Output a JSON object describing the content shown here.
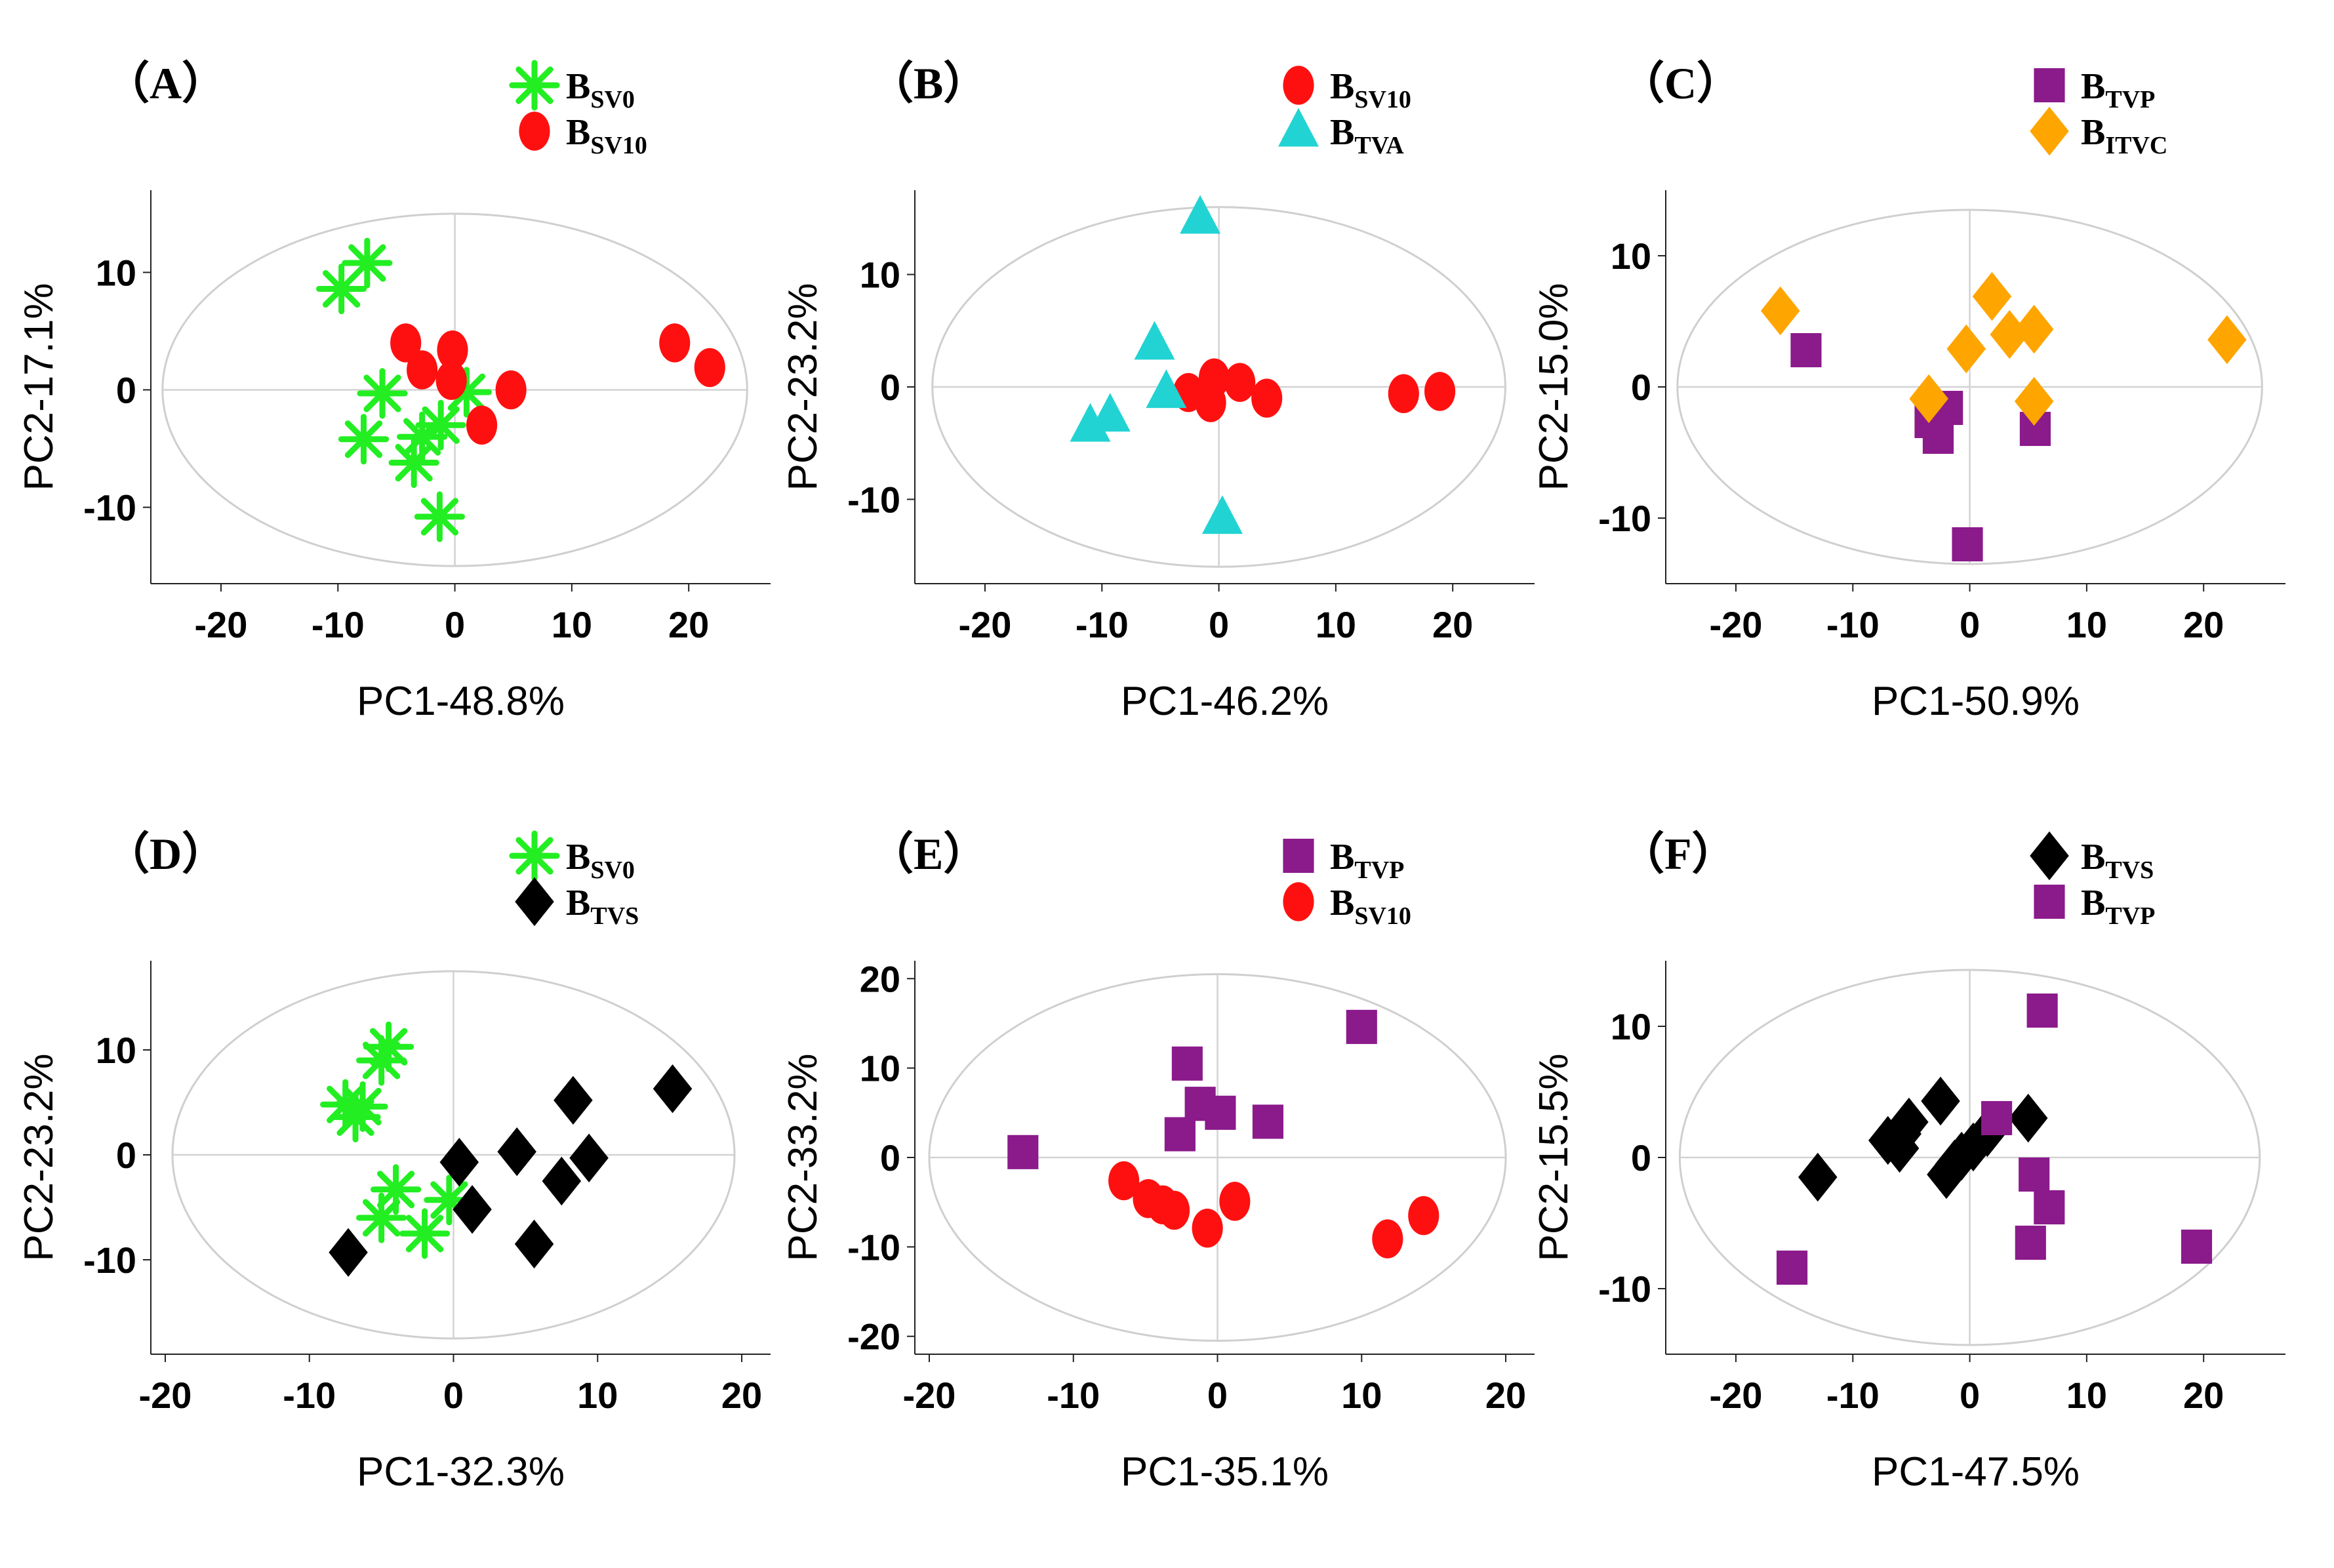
{
  "colors": {
    "green": "#22ee22",
    "red": "#ff1010",
    "cyan": "#22d3d3",
    "purple": "#8b1a8b",
    "orange": "#ffa500",
    "black": "#000000"
  },
  "chart_data": [
    {
      "type": "scatter",
      "panel_label": "（A）",
      "xlabel": "PC1-48.8%",
      "ylabel": "PC2-17.1%",
      "xlim": [
        -26,
        27
      ],
      "ylim": [
        -16.5,
        17
      ],
      "xticks": [
        -20,
        -10,
        0,
        10,
        20
      ],
      "xtick_labels": [
        "-20",
        "-10",
        "0",
        "10",
        "20"
      ],
      "yticks": [
        -10,
        0,
        10
      ],
      "ytick_labels": [
        "-10",
        "0",
        "10"
      ],
      "ellipse": {
        "rx": 25,
        "ry": 15
      },
      "series": [
        {
          "name": "BSV0",
          "label_main": "B",
          "label_sub": "SV0",
          "marker": "asterisk",
          "color": "#22ee22",
          "points": [
            [
              -9.7,
              8.6
            ],
            [
              -7.5,
              10.8
            ],
            [
              -6.2,
              -0.3
            ],
            [
              -7.8,
              -4.2
            ],
            [
              -3.5,
              -6.2
            ],
            [
              -2.8,
              -4.0
            ],
            [
              -1.2,
              -3.0
            ],
            [
              -1.3,
              -10.8
            ],
            [
              1.0,
              -0.2
            ]
          ]
        },
        {
          "name": "BSV10",
          "label_main": "B",
          "label_sub": "SV10",
          "marker": "oval",
          "color": "#ff1010",
          "points": [
            [
              -4.2,
              4.0
            ],
            [
              -2.8,
              1.7
            ],
            [
              -0.2,
              3.4
            ],
            [
              -0.3,
              0.8
            ],
            [
              4.8,
              0.0
            ],
            [
              2.3,
              -3.0
            ],
            [
              18.8,
              4.0
            ],
            [
              21.8,
              1.9
            ]
          ]
        }
      ]
    },
    {
      "type": "scatter",
      "panel_label": "（B）",
      "xlabel": "PC1-46.2%",
      "ylabel": "PC2-23.2%",
      "xlim": [
        -26,
        27
      ],
      "ylim": [
        -17.5,
        17.5
      ],
      "xticks": [
        -20,
        -10,
        0,
        10,
        20
      ],
      "xtick_labels": [
        "-20",
        "-10",
        "0",
        "10",
        "20"
      ],
      "yticks": [
        -10,
        0,
        10
      ],
      "ytick_labels": [
        "-10",
        "0",
        "10"
      ],
      "ellipse": {
        "rx": 24.5,
        "ry": 16
      },
      "series": [
        {
          "name": "BSV10",
          "label_main": "B",
          "label_sub": "SV10",
          "marker": "oval",
          "color": "#ff1010",
          "points": [
            [
              -2.6,
              -0.5
            ],
            [
              -0.4,
              0.8
            ],
            [
              -0.7,
              -1.4
            ],
            [
              1.8,
              0.4
            ],
            [
              4.1,
              -1.0
            ],
            [
              15.8,
              -0.6
            ],
            [
              18.9,
              -0.4
            ]
          ]
        },
        {
          "name": "BTVA",
          "label_main": "B",
          "label_sub": "TVA",
          "marker": "triangle",
          "color": "#22d3d3",
          "points": [
            [
              -1.6,
              15.0
            ],
            [
              -5.5,
              3.8
            ],
            [
              -4.5,
              -0.5
            ],
            [
              -9.3,
              -2.6
            ],
            [
              -11.0,
              -3.5
            ],
            [
              0.3,
              -11.7
            ]
          ]
        }
      ]
    },
    {
      "type": "scatter",
      "panel_label": "（C）",
      "xlabel": "PC1-50.9%",
      "ylabel": "PC2-15.0%",
      "xlim": [
        -26,
        27
      ],
      "ylim": [
        -15,
        15
      ],
      "xticks": [
        -20,
        -10,
        0,
        10,
        20
      ],
      "xtick_labels": [
        "-20",
        "-10",
        "0",
        "10",
        "20"
      ],
      "yticks": [
        -10,
        0,
        10
      ],
      "ytick_labels": [
        "-10",
        "0",
        "10"
      ],
      "ellipse": {
        "rx": 25,
        "ry": 13.5
      },
      "series": [
        {
          "name": "BTVP",
          "label_main": "B",
          "label_sub": "TVP",
          "marker": "square",
          "color": "#8b1a8b",
          "points": [
            [
              -14.0,
              2.8
            ],
            [
              -1.9,
              -1.6
            ],
            [
              -3.4,
              -2.6
            ],
            [
              -2.7,
              -3.8
            ],
            [
              5.6,
              -3.2
            ],
            [
              -0.2,
              -12.0
            ]
          ]
        },
        {
          "name": "BITVC",
          "label_main": "B",
          "label_sub": "ITVC",
          "marker": "diamond",
          "color": "#ffa500",
          "points": [
            [
              -16.2,
              5.8
            ],
            [
              1.9,
              6.9
            ],
            [
              3.4,
              4.0
            ],
            [
              5.5,
              4.4
            ],
            [
              -0.3,
              2.9
            ],
            [
              -3.5,
              -0.9
            ],
            [
              5.5,
              -1.1
            ],
            [
              22.0,
              3.6
            ]
          ]
        }
      ]
    },
    {
      "type": "scatter",
      "panel_label": "（D）",
      "xlabel": "PC1-32.3%",
      "ylabel": "PC2-23.2%",
      "xlim": [
        -21,
        22
      ],
      "ylim": [
        -19,
        18.5
      ],
      "xticks": [
        -20,
        -10,
        0,
        10,
        20
      ],
      "xtick_labels": [
        "-20",
        "-10",
        "0",
        "10",
        "20"
      ],
      "yticks": [
        -10,
        0,
        10
      ],
      "ytick_labels": [
        "-10",
        "0",
        "10"
      ],
      "ellipse": {
        "rx": 19.5,
        "ry": 17.5
      },
      "series": [
        {
          "name": "BSV0",
          "label_main": "B",
          "label_sub": "SV0",
          "marker": "asterisk",
          "color": "#22ee22",
          "points": [
            [
              -7.5,
              4.8
            ],
            [
              -6.8,
              3.6
            ],
            [
              -6.3,
              4.6
            ],
            [
              -5.0,
              9.0
            ],
            [
              -4.5,
              10.3
            ],
            [
              -4.0,
              -3.3
            ],
            [
              -5.0,
              -6.0
            ],
            [
              -2.0,
              -7.5
            ],
            [
              -0.3,
              -4.3
            ]
          ]
        },
        {
          "name": "BTVS",
          "label_main": "B",
          "label_sub": "TVS",
          "marker": "diamond",
          "color": "#000000",
          "points": [
            [
              -7.3,
              -9.3
            ],
            [
              0.4,
              -0.7
            ],
            [
              1.3,
              -5.2
            ],
            [
              4.4,
              0.3
            ],
            [
              5.6,
              -8.5
            ],
            [
              7.5,
              -2.5
            ],
            [
              8.3,
              5.2
            ],
            [
              9.4,
              -0.3
            ],
            [
              15.2,
              6.3
            ]
          ]
        }
      ]
    },
    {
      "type": "scatter",
      "panel_label": "（E）",
      "xlabel": "PC1-35.1%",
      "ylabel": "PC2-33.2%",
      "xlim": [
        -21,
        22
      ],
      "ylim": [
        -22,
        22
      ],
      "xticks": [
        -20,
        -10,
        0,
        10,
        20
      ],
      "xtick_labels": [
        "-20",
        "-10",
        "0",
        "10",
        "20"
      ],
      "yticks": [
        -20,
        -10,
        0,
        10,
        20
      ],
      "ytick_labels": [
        "-20",
        "-10",
        "0",
        "10",
        "20"
      ],
      "ellipse": {
        "rx": 20,
        "ry": 20.5
      },
      "series": [
        {
          "name": "BTVP",
          "label_main": "B",
          "label_sub": "TVP",
          "marker": "square",
          "color": "#8b1a8b",
          "points": [
            [
              -13.5,
              0.6
            ],
            [
              -2.1,
              10.5
            ],
            [
              -1.2,
              6.0
            ],
            [
              0.2,
              5.0
            ],
            [
              3.5,
              4.0
            ],
            [
              10.0,
              14.6
            ],
            [
              -2.6,
              2.6
            ]
          ]
        },
        {
          "name": "BSV10",
          "label_main": "B",
          "label_sub": "SV10",
          "marker": "oval",
          "color": "#ff1010",
          "points": [
            [
              -6.5,
              -2.6
            ],
            [
              -4.8,
              -4.6
            ],
            [
              -3.8,
              -5.3
            ],
            [
              -3.0,
              -5.9
            ],
            [
              -0.7,
              -7.9
            ],
            [
              1.2,
              -4.9
            ],
            [
              11.8,
              -9.1
            ],
            [
              14.3,
              -6.5
            ]
          ]
        }
      ]
    },
    {
      "type": "scatter",
      "panel_label": "（F）",
      "xlabel": "PC1-47.5%",
      "ylabel": "PC2-15.5%",
      "xlim": [
        -26,
        27
      ],
      "ylim": [
        -15,
        15
      ],
      "xticks": [
        -20,
        -10,
        0,
        10,
        20
      ],
      "xtick_labels": [
        "-20",
        "-10",
        "0",
        "10",
        "20"
      ],
      "yticks": [
        -10,
        0,
        10
      ],
      "ytick_labels": [
        "-10",
        "0",
        "10"
      ],
      "ellipse": {
        "rx": 24.8,
        "ry": 14.3
      },
      "series": [
        {
          "name": "BTVS",
          "label_main": "B",
          "label_sub": "TVS",
          "marker": "diamond",
          "color": "#000000",
          "points": [
            [
              -13.0,
              -1.5
            ],
            [
              -7.0,
              1.3
            ],
            [
              -6.0,
              0.7
            ],
            [
              -5.8,
              1.8
            ],
            [
              -5.2,
              2.7
            ],
            [
              -2.5,
              4.3
            ],
            [
              -2.0,
              -1.3
            ],
            [
              -1.3,
              -0.5
            ],
            [
              -0.7,
              0.1
            ],
            [
              0.3,
              0.8
            ],
            [
              1.5,
              1.9
            ],
            [
              5.0,
              3.0
            ]
          ]
        },
        {
          "name": "BTVP",
          "label_main": "B",
          "label_sub": "TVP",
          "marker": "square",
          "color": "#8b1a8b",
          "points": [
            [
              -15.2,
              -8.4
            ],
            [
              2.3,
              3.0
            ],
            [
              5.5,
              -1.3
            ],
            [
              5.2,
              -6.5
            ],
            [
              6.8,
              -3.8
            ],
            [
              6.2,
              11.2
            ],
            [
              19.4,
              -6.8
            ]
          ]
        }
      ]
    }
  ]
}
